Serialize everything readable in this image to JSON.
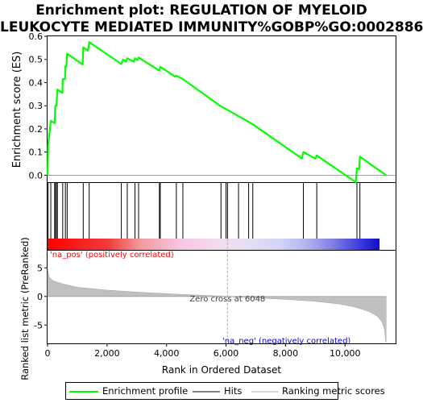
{
  "title_line1": "Enrichment plot: REGULATION OF MYELOID",
  "title_line2": "LEUKOCYTE MEDIATED IMMUNITY%GOBP%GO:0002886",
  "legend": {
    "enrichment_profile": "Enrichment profile",
    "hits": "Hits",
    "ranking_metric": "Ranking metric scores"
  },
  "colors": {
    "enrichment_line": "#00ff00",
    "hits": "#000000",
    "ranking_fill": "#c0c0c0",
    "positive_label": "#ff0000",
    "negative_label": "#0000ff"
  },
  "chart_data": [
    {
      "type": "line",
      "name": "enrichment-score",
      "ylabel": "Enrichment score (ES)",
      "ylim": [
        -0.03,
        0.6
      ],
      "yticks": [
        0.0,
        0.1,
        0.2,
        0.3,
        0.4,
        0.5,
        0.6
      ],
      "ytick_labels": [
        "0.0",
        "0.1",
        "0.2",
        "0.3",
        "0.4",
        "0.5",
        "0.6"
      ],
      "xlim": [
        0,
        11700
      ],
      "grid": false,
      "points": [
        [
          0,
          0.0
        ],
        [
          20,
          0.13
        ],
        [
          110,
          0.235
        ],
        [
          240,
          0.225
        ],
        [
          260,
          0.3
        ],
        [
          300,
          0.3
        ],
        [
          330,
          0.37
        ],
        [
          500,
          0.355
        ],
        [
          510,
          0.415
        ],
        [
          590,
          0.415
        ],
        [
          600,
          0.47
        ],
        [
          630,
          0.47
        ],
        [
          660,
          0.525
        ],
        [
          1180,
          0.478
        ],
        [
          1200,
          0.552
        ],
        [
          1360,
          0.538
        ],
        [
          1400,
          0.575
        ],
        [
          2480,
          0.48
        ],
        [
          2540,
          0.5
        ],
        [
          2640,
          0.49
        ],
        [
          2680,
          0.505
        ],
        [
          2900,
          0.49
        ],
        [
          2940,
          0.505
        ],
        [
          3020,
          0.497
        ],
        [
          3060,
          0.508
        ],
        [
          3760,
          0.452
        ],
        [
          3790,
          0.468
        ],
        [
          4300,
          0.425
        ],
        [
          4330,
          0.43
        ],
        [
          4550,
          0.415
        ],
        [
          5800,
          0.3
        ],
        [
          6900,
          0.22
        ],
        [
          8550,
          0.072
        ],
        [
          8600,
          0.1
        ],
        [
          9000,
          0.072
        ],
        [
          9050,
          0.085
        ],
        [
          10360,
          -0.03
        ],
        [
          10400,
          0.03
        ],
        [
          10470,
          0.025
        ],
        [
          10500,
          0.08
        ],
        [
          11380,
          0.0
        ]
      ]
    },
    {
      "type": "bar",
      "name": "hits",
      "hit_positions": [
        20,
        110,
        240,
        260,
        300,
        330,
        510,
        600,
        660,
        1200,
        1400,
        2480,
        2680,
        2940,
        3060,
        3760,
        3790,
        4330,
        4550,
        5830,
        6000,
        6050,
        6420,
        6760,
        6900,
        8600,
        9050,
        10400,
        10500
      ]
    },
    {
      "type": "area",
      "name": "ranking-metric",
      "ylabel": "Ranked list metric (PreRanked)",
      "xlabel": "Rank in Ordered Dataset",
      "ylim": [
        -8.2,
        8.0
      ],
      "yticks": [
        -5,
        0,
        5
      ],
      "ytick_labels": [
        "-5",
        "0",
        "5"
      ],
      "xlim": [
        0,
        11700
      ],
      "xticks": [
        0,
        2000,
        4000,
        6000,
        8000,
        10000
      ],
      "xtick_labels": [
        "0",
        "2,000",
        "4,000",
        "6,000",
        "8,000",
        "10,000"
      ],
      "points": [
        [
          0,
          4.8
        ],
        [
          60,
          3.3
        ],
        [
          200,
          2.7
        ],
        [
          500,
          2.2
        ],
        [
          1000,
          1.6
        ],
        [
          2000,
          1.1
        ],
        [
          3000,
          0.75
        ],
        [
          4000,
          0.5
        ],
        [
          5000,
          0.25
        ],
        [
          6048,
          0.0
        ],
        [
          7000,
          -0.25
        ],
        [
          8000,
          -0.5
        ],
        [
          9000,
          -0.85
        ],
        [
          9800,
          -1.3
        ],
        [
          10300,
          -1.8
        ],
        [
          10800,
          -2.6
        ],
        [
          11100,
          -3.5
        ],
        [
          11250,
          -4.5
        ],
        [
          11330,
          -5.8
        ],
        [
          11370,
          -8.0
        ],
        [
          11380,
          -8.0
        ]
      ],
      "annotations": {
        "zero_cross": "Zero cross at 6048",
        "zero_cross_rank": 6048,
        "positive": "'na_pos' (positively correlated)",
        "negative": "'na_neg' (negatively correlated)"
      }
    }
  ]
}
